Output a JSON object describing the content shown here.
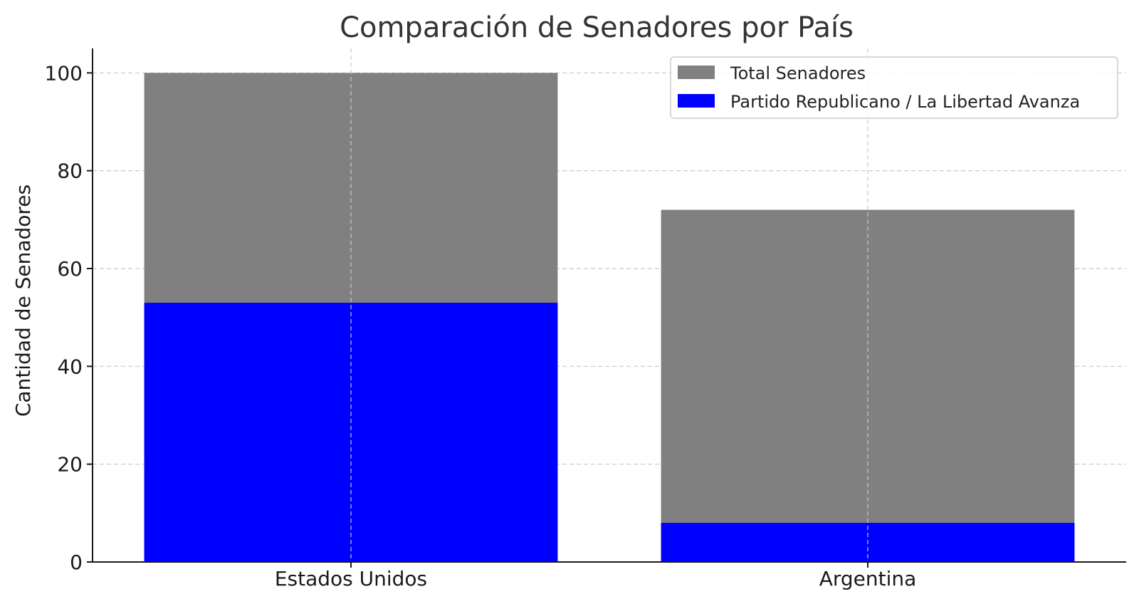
{
  "chart_data": {
    "type": "bar",
    "stacked": "overlay",
    "title": "Comparación de Senadores por País",
    "xlabel": "",
    "ylabel": "Cantidad de Senadores",
    "categories": [
      "Estados Unidos",
      "Argentina"
    ],
    "series": [
      {
        "name": "Total Senadores",
        "values": [
          100,
          72
        ],
        "color": "#808080"
      },
      {
        "name": "Partido Republicano / La Libertad Avanza",
        "values": [
          53,
          8
        ],
        "color": "#0000ff"
      }
    ],
    "ylim": [
      0,
      105
    ],
    "yticks": [
      0,
      20,
      40,
      60,
      80,
      100
    ],
    "grid": true,
    "legend_position": "top-right"
  }
}
